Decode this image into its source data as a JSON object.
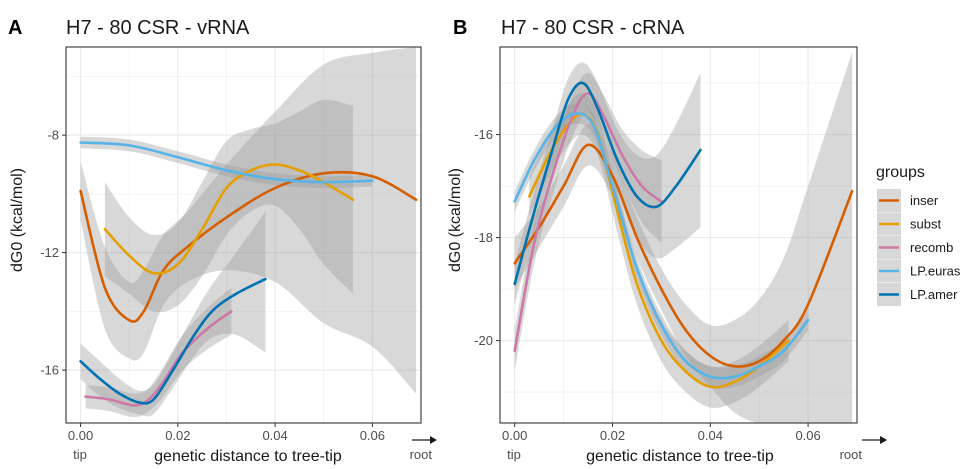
{
  "colors": {
    "inser": "#d55e00",
    "subst": "#e69f00",
    "recomb": "#cc79a7",
    "LP.euras": "#56b4e9",
    "LP.amer": "#0072b2",
    "ribbon": "#999999",
    "panel_bg": "#ffffff",
    "grid": "#ebebeb",
    "border": "#333333"
  },
  "legend": {
    "title": "groups",
    "items": [
      {
        "key": "inser",
        "label": "inser"
      },
      {
        "key": "subst",
        "label": "subst"
      },
      {
        "key": "recomb",
        "label": "recomb"
      },
      {
        "key": "LP.euras",
        "label": "LP.euras"
      },
      {
        "key": "LP.amer",
        "label": "LP.amer"
      }
    ]
  },
  "chart_data": [
    {
      "type": "line",
      "panel_label": "A",
      "title": "H7 - 80 CSR - vRNA",
      "xlabel": "genetic distance to tree-tip",
      "ylabel": "dG0 (kcal/mol)",
      "xlim": [
        -0.003,
        0.07
      ],
      "ylim": [
        -17.8,
        -5.0
      ],
      "x_ticks": [
        0.0,
        0.02,
        0.04,
        0.06
      ],
      "x_tick_labels": [
        "0.00",
        "0.02",
        "0.04",
        "0.06"
      ],
      "y_ticks": [
        -8,
        -12,
        -16
      ],
      "y_tick_labels": [
        "-8",
        "-12",
        "-16"
      ],
      "x_end_labels": {
        "left": "tip",
        "right": "root"
      },
      "series": [
        {
          "name": "inser",
          "x": [
            0.0,
            0.005,
            0.01,
            0.013,
            0.017,
            0.022,
            0.03,
            0.04,
            0.05,
            0.06,
            0.069
          ],
          "y": [
            -9.9,
            -13.2,
            -14.3,
            -14.0,
            -12.6,
            -11.8,
            -10.8,
            -9.8,
            -9.3,
            -9.4,
            -10.2
          ],
          "lower": [
            -10.9,
            -14.6,
            -15.6,
            -15.4,
            -13.8,
            -13.0,
            -12.6,
            -13.0,
            -14.4,
            -15.2,
            -16.8
          ],
          "upper": [
            -8.9,
            -11.8,
            -13.0,
            -12.6,
            -11.4,
            -10.6,
            -9.0,
            -7.2,
            -5.6,
            -5.2,
            -5.0
          ]
        },
        {
          "name": "subst",
          "x": [
            0.005,
            0.01,
            0.015,
            0.02,
            0.025,
            0.03,
            0.035,
            0.04,
            0.045,
            0.05,
            0.056
          ],
          "y": [
            -11.2,
            -12.1,
            -12.7,
            -12.4,
            -11.2,
            -9.8,
            -9.2,
            -9.0,
            -9.2,
            -9.6,
            -10.2
          ],
          "lower": [
            -12.8,
            -13.4,
            -14.0,
            -13.8,
            -12.8,
            -11.4,
            -10.6,
            -10.4,
            -11.2,
            -12.4,
            -13.4
          ],
          "upper": [
            -9.6,
            -10.8,
            -11.4,
            -11.0,
            -9.6,
            -8.2,
            -7.8,
            -7.6,
            -7.2,
            -6.8,
            -7.0
          ]
        },
        {
          "name": "recomb",
          "x": [
            0.001,
            0.006,
            0.011,
            0.014,
            0.017,
            0.021,
            0.026,
            0.031
          ],
          "y": [
            -16.9,
            -17.0,
            -17.2,
            -17.0,
            -16.4,
            -15.4,
            -14.6,
            -14.0
          ],
          "lower": [
            -17.3,
            -17.4,
            -17.6,
            -17.4,
            -16.9,
            -16.0,
            -15.3,
            -14.8
          ],
          "upper": [
            -16.5,
            -16.6,
            -16.8,
            -16.6,
            -15.9,
            -14.8,
            -13.9,
            -13.2
          ]
        },
        {
          "name": "LP.euras",
          "x": [
            0.0,
            0.01,
            0.02,
            0.03,
            0.04,
            0.05,
            0.06
          ],
          "y": [
            -8.25,
            -8.35,
            -8.75,
            -9.2,
            -9.5,
            -9.6,
            -9.55
          ],
          "lower": [
            -8.45,
            -8.55,
            -8.95,
            -9.4,
            -9.7,
            -9.8,
            -9.75
          ],
          "upper": [
            -8.05,
            -8.15,
            -8.55,
            -9.0,
            -9.3,
            -9.4,
            -9.35
          ]
        },
        {
          "name": "LP.amer",
          "x": [
            0.0,
            0.004,
            0.008,
            0.012,
            0.015,
            0.019,
            0.023,
            0.027,
            0.032,
            0.038
          ],
          "y": [
            -15.7,
            -16.3,
            -16.8,
            -17.1,
            -17.0,
            -16.0,
            -14.9,
            -14.0,
            -13.4,
            -12.9
          ],
          "lower": [
            -16.3,
            -16.9,
            -17.3,
            -17.5,
            -17.5,
            -16.6,
            -15.6,
            -14.9,
            -14.8,
            -15.4
          ],
          "upper": [
            -15.1,
            -15.7,
            -16.3,
            -16.7,
            -16.5,
            -15.4,
            -14.2,
            -13.1,
            -12.0,
            -10.6
          ]
        }
      ]
    },
    {
      "type": "line",
      "panel_label": "B",
      "title": "H7 - 80 CSR - cRNA",
      "xlabel": "genetic distance to tree-tip",
      "ylabel": "dG0 (kcal/mol)",
      "xlim": [
        -0.003,
        0.07
      ],
      "ylim": [
        -21.6,
        -14.3
      ],
      "x_ticks": [
        0.0,
        0.02,
        0.04,
        0.06
      ],
      "x_tick_labels": [
        "0.00",
        "0.02",
        "0.04",
        "0.06"
      ],
      "y_ticks": [
        -16,
        -18,
        -20
      ],
      "y_tick_labels": [
        "-16",
        "-18",
        "-20"
      ],
      "x_end_labels": {
        "left": "tip",
        "right": "root"
      },
      "series": [
        {
          "name": "inser",
          "x": [
            0.0,
            0.005,
            0.01,
            0.015,
            0.02,
            0.025,
            0.03,
            0.035,
            0.04,
            0.045,
            0.05,
            0.055,
            0.06,
            0.069
          ],
          "y": [
            -18.5,
            -17.8,
            -17.0,
            -16.2,
            -16.8,
            -18.0,
            -19.0,
            -19.8,
            -20.3,
            -20.5,
            -20.4,
            -20.0,
            -19.3,
            -17.1
          ],
          "lower": [
            -19.0,
            -18.2,
            -17.4,
            -16.6,
            -17.2,
            -18.4,
            -19.4,
            -20.3,
            -20.9,
            -21.4,
            -21.6,
            -21.6,
            -21.6,
            -21.6
          ],
          "upper": [
            -18.0,
            -17.4,
            -16.6,
            -15.8,
            -16.4,
            -17.6,
            -18.6,
            -19.3,
            -19.7,
            -19.6,
            -19.2,
            -18.4,
            -17.0,
            -14.4
          ]
        },
        {
          "name": "subst",
          "x": [
            0.003,
            0.007,
            0.011,
            0.014,
            0.017,
            0.021,
            0.025,
            0.03,
            0.035,
            0.04,
            0.045,
            0.05,
            0.056
          ],
          "y": [
            -17.2,
            -16.4,
            -15.8,
            -15.6,
            -16.0,
            -17.5,
            -18.9,
            -20.0,
            -20.6,
            -20.9,
            -20.8,
            -20.5,
            -20.0
          ],
          "lower": [
            -17.6,
            -16.8,
            -16.2,
            -16.0,
            -16.4,
            -17.9,
            -19.3,
            -20.4,
            -21.0,
            -21.3,
            -21.2,
            -20.9,
            -20.4
          ],
          "upper": [
            -16.8,
            -16.0,
            -15.4,
            -15.2,
            -15.6,
            -17.1,
            -18.5,
            -19.6,
            -20.2,
            -20.5,
            -20.4,
            -20.1,
            -19.6
          ]
        },
        {
          "name": "recomb",
          "x": [
            0.0,
            0.004,
            0.008,
            0.012,
            0.015,
            0.018,
            0.022,
            0.026,
            0.03
          ],
          "y": [
            -20.2,
            -18.1,
            -16.7,
            -15.6,
            -15.2,
            -15.6,
            -16.4,
            -17.0,
            -17.3
          ],
          "lower": [
            -20.6,
            -18.5,
            -17.1,
            -16.0,
            -15.6,
            -16.0,
            -16.9,
            -17.7,
            -18.1
          ],
          "upper": [
            -19.8,
            -17.7,
            -16.3,
            -15.2,
            -14.8,
            -15.2,
            -15.9,
            -16.3,
            -16.5
          ]
        },
        {
          "name": "LP.euras",
          "x": [
            0.0,
            0.004,
            0.008,
            0.012,
            0.016,
            0.02,
            0.025,
            0.03,
            0.035,
            0.04,
            0.045,
            0.05,
            0.055,
            0.06
          ],
          "y": [
            -17.3,
            -16.5,
            -15.9,
            -15.6,
            -15.8,
            -17.0,
            -18.6,
            -19.7,
            -20.4,
            -20.7,
            -20.7,
            -20.5,
            -20.2,
            -19.6
          ],
          "lower": [
            -17.5,
            -16.7,
            -16.1,
            -15.8,
            -16.0,
            -17.2,
            -18.8,
            -19.9,
            -20.6,
            -20.9,
            -20.9,
            -20.7,
            -20.4,
            -19.8
          ],
          "upper": [
            -17.1,
            -16.3,
            -15.7,
            -15.4,
            -15.6,
            -16.8,
            -18.4,
            -19.5,
            -20.2,
            -20.5,
            -20.5,
            -20.3,
            -20.0,
            -19.4
          ]
        },
        {
          "name": "LP.amer",
          "x": [
            0.0,
            0.004,
            0.008,
            0.011,
            0.014,
            0.017,
            0.021,
            0.025,
            0.029,
            0.033,
            0.038
          ],
          "y": [
            -18.9,
            -17.5,
            -16.2,
            -15.3,
            -15.0,
            -15.5,
            -16.5,
            -17.2,
            -17.4,
            -17.0,
            -16.3
          ],
          "lower": [
            -19.3,
            -17.9,
            -16.6,
            -15.7,
            -15.4,
            -16.0,
            -17.1,
            -18.0,
            -18.4,
            -18.2,
            -17.8
          ],
          "upper": [
            -18.5,
            -17.1,
            -15.8,
            -14.9,
            -14.6,
            -15.0,
            -15.9,
            -16.4,
            -16.4,
            -15.8,
            -14.8
          ]
        }
      ]
    }
  ]
}
